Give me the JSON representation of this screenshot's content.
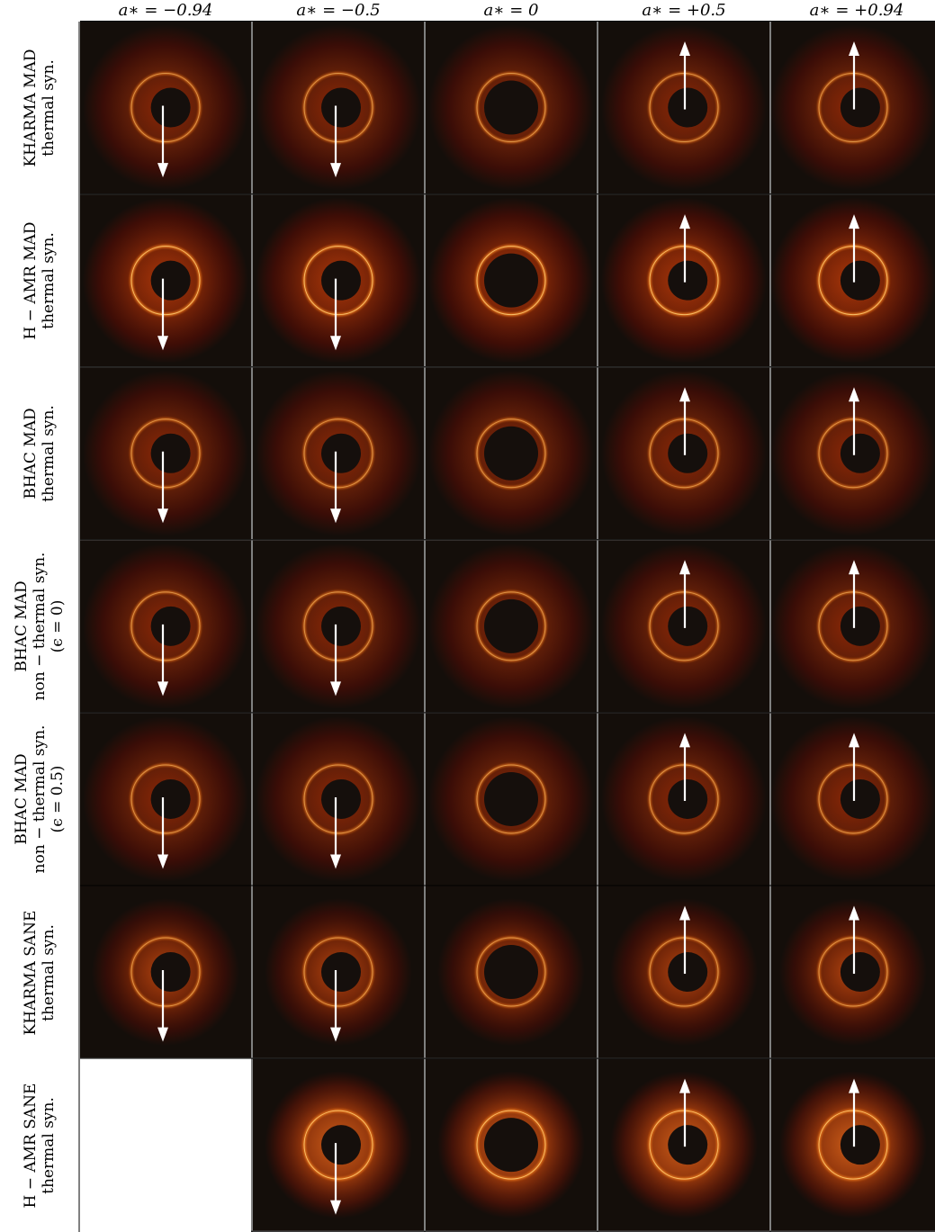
{
  "columns": [
    {
      "label": "a∗ = −0.94",
      "spin": -0.94
    },
    {
      "label": "a∗ = −0.5",
      "spin": -0.5
    },
    {
      "label": "a∗ = 0",
      "spin": 0
    },
    {
      "label": "a∗ = +0.5",
      "spin": 0.5
    },
    {
      "label": "a∗ = +0.94",
      "spin": 0.94
    }
  ],
  "rows": [
    {
      "lines": [
        "KHARMA MAD",
        "thermal syn."
      ],
      "panels": [
        true,
        true,
        true,
        true,
        true
      ],
      "style": "mad"
    },
    {
      "lines": [
        "H − AMR MAD",
        "thermal syn."
      ],
      "panels": [
        true,
        true,
        true,
        true,
        true
      ],
      "style": "mad-bright"
    },
    {
      "lines": [
        "BHAC MAD",
        "thermal syn."
      ],
      "panels": [
        true,
        true,
        true,
        true,
        true
      ],
      "style": "mad"
    },
    {
      "lines": [
        "BHAC MAD",
        "non − thermal syn.",
        "(ϵ = 0)"
      ],
      "panels": [
        true,
        true,
        true,
        true,
        true
      ],
      "style": "mad"
    },
    {
      "lines": [
        "BHAC MAD",
        "non − thermal syn.",
        "(ϵ = 0.5)"
      ],
      "panels": [
        true,
        true,
        true,
        true,
        true
      ],
      "style": "mad"
    },
    {
      "lines": [
        "KHARMA SANE",
        "thermal syn."
      ],
      "panels": [
        true,
        true,
        true,
        true,
        true
      ],
      "style": "sane"
    },
    {
      "lines": [
        "H − AMR SANE",
        "thermal syn."
      ],
      "panels": [
        false,
        true,
        true,
        true,
        true
      ],
      "style": "sane-bright"
    }
  ],
  "colors": {
    "background": "#140e0a",
    "glow_outer": "#5a0c04",
    "glow_mid": "#9a2a06",
    "ring": "#f07a1c",
    "ring_hot": "#ffd27a",
    "shadow": "#150f0c",
    "arrow": "#ffffff"
  },
  "icons": {
    "arrow": "spin-axis-arrow-icon"
  }
}
